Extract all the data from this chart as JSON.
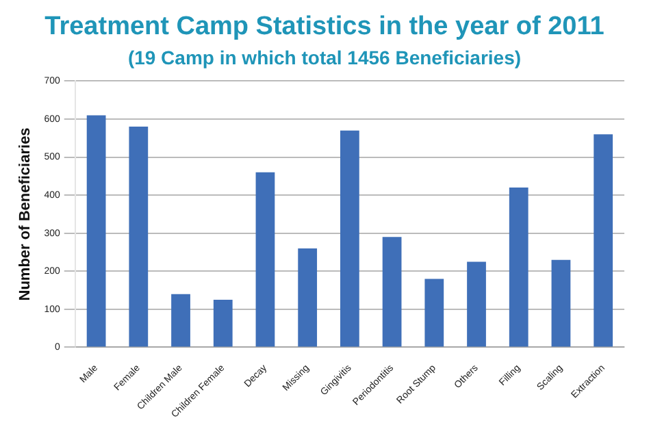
{
  "chart_data": {
    "type": "bar",
    "title": "Treatment Camp Statistics in the year of 2011",
    "subtitle": "(19 Camp in which total 1456 Beneficiaries)",
    "ylabel": "Number of Beneficiaries",
    "categories": [
      "Male",
      "Female",
      "Children Male",
      "Children Female",
      "Decay",
      "Missing",
      "Gingivitis",
      "Periodontitis",
      "Root Stump",
      "Others",
      "Filling",
      "Scaling",
      "Extraction"
    ],
    "values": [
      610,
      580,
      140,
      125,
      460,
      260,
      570,
      290,
      180,
      225,
      420,
      230,
      560
    ],
    "color": "#3f6fb8",
    "ylim": [
      0,
      700
    ],
    "yticks": [
      0,
      100,
      200,
      300,
      400,
      500,
      600,
      700
    ],
    "grid": "y"
  }
}
